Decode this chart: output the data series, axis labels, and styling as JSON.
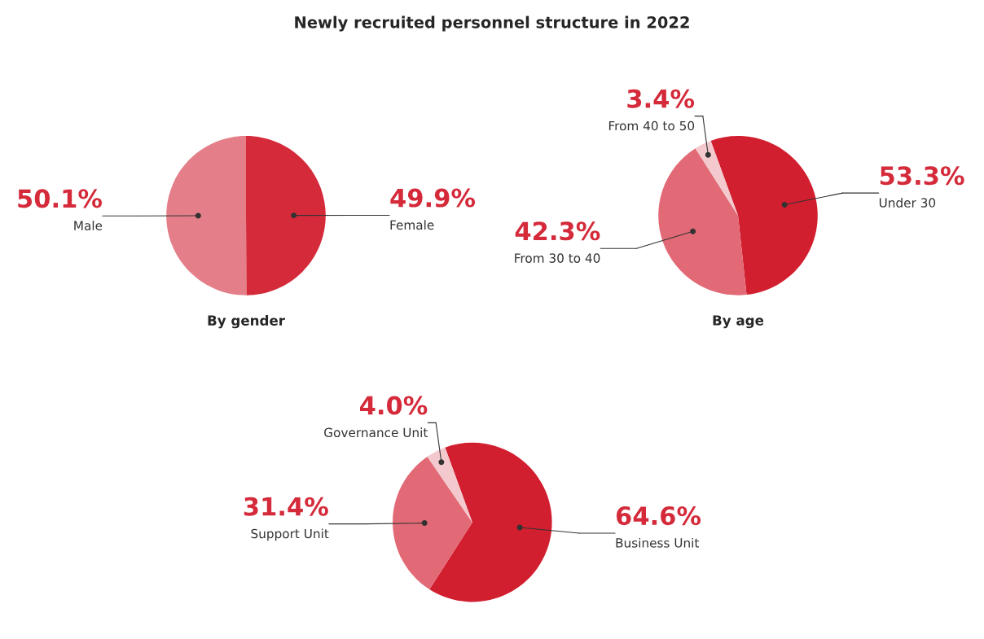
{
  "chart_data": [
    {
      "type": "pie",
      "title": "Newly recruited personnel structure in 2022",
      "xlabel": "By gender",
      "categories": [
        "Male",
        "Female"
      ],
      "values": [
        50.1,
        49.9
      ],
      "value_labels": [
        "50.1%",
        "49.9%"
      ],
      "colors": [
        "#e47f8a",
        "#d42a3a"
      ]
    },
    {
      "type": "pie",
      "xlabel": "By age",
      "categories": [
        "Under 30",
        "From 30 to 40",
        "From 40 to 50"
      ],
      "values": [
        53.3,
        42.3,
        3.4
      ],
      "value_labels": [
        "53.3%",
        "42.3%",
        "3.4%"
      ],
      "colors": [
        "#d21f30",
        "#e26a76",
        "#f3c9ce"
      ]
    },
    {
      "type": "pie",
      "categories": [
        "Business Unit",
        "Support Unit",
        "Governance Unit"
      ],
      "values": [
        64.6,
        31.4,
        4.0
      ],
      "value_labels": [
        "64.6%",
        "31.4%",
        "4.0%"
      ],
      "colors": [
        "#d21f30",
        "#e26a76",
        "#f3c9ce"
      ]
    }
  ]
}
